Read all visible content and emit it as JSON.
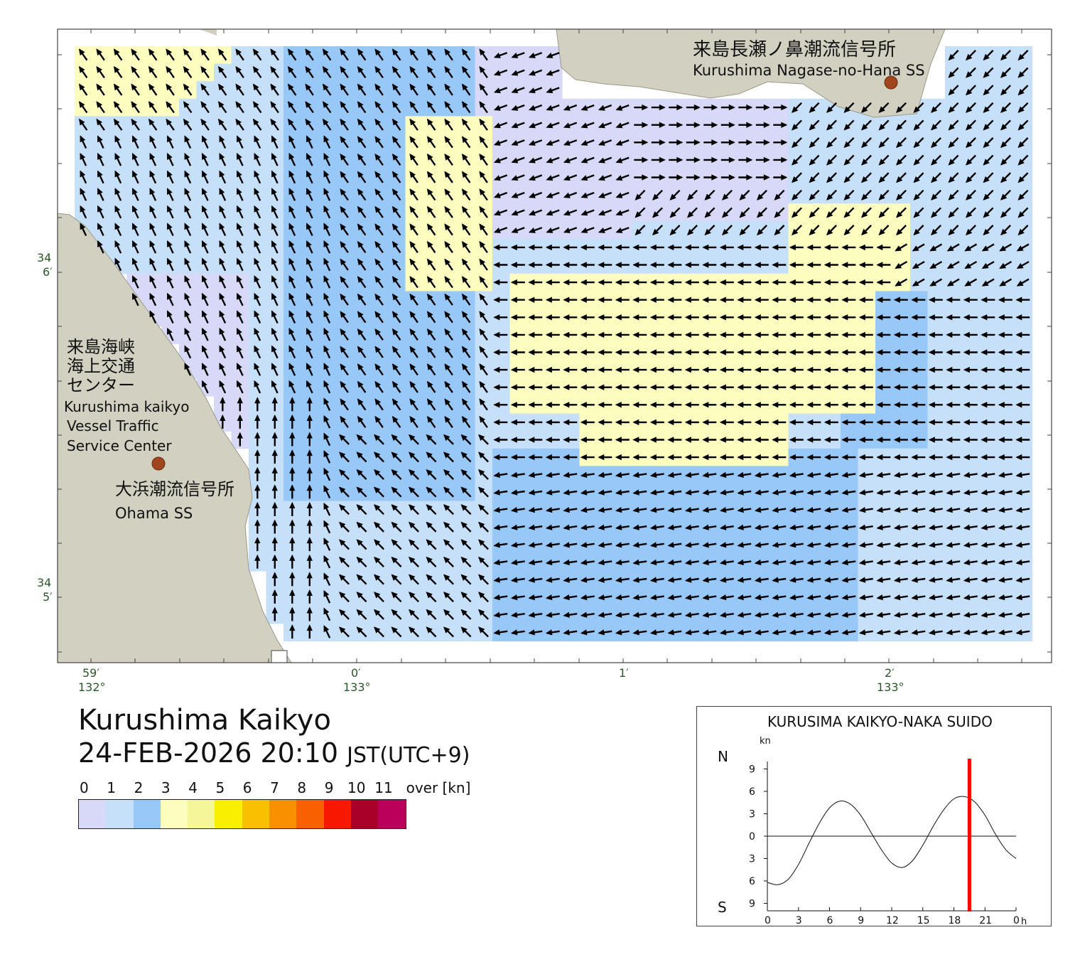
{
  "map": {
    "stations": [
      {
        "name_ja": "来島長瀬ノ鼻潮流信号所",
        "name_en": "Kurushima Nagase-no-Hana SS"
      },
      {
        "name_ja": "大浜潮流信号所",
        "name_en": "Ohama SS"
      }
    ],
    "vts_center": {
      "name_ja": [
        "来島海峡",
        "海上交通",
        "センター"
      ],
      "name_en": [
        "Kurushima kaikyo",
        "Vessel Traffic",
        "Service Center"
      ]
    },
    "lat_labels": [
      {
        "deg": "34",
        "min": "6′"
      },
      {
        "deg": "34",
        "min": "5′"
      }
    ],
    "lon_labels": [
      {
        "top": "59′",
        "bottom": "132°"
      },
      {
        "top": "0′",
        "bottom": "133°"
      },
      {
        "top": "1′",
        "bottom": ""
      },
      {
        "top": "2′",
        "bottom": "133°"
      }
    ],
    "colors": {
      "land": "#d2d0c0",
      "speed_0_1": "#d8d8f8",
      "speed_1_2": "#c6e0fa",
      "speed_2_3": "#98c8f8",
      "speed_3_4": "#fdfdc0"
    }
  },
  "title": {
    "place": "Kurushima Kaikyo",
    "datetime": "24-FEB-2026 20:10",
    "timezone": "JST(UTC+9)"
  },
  "legend": {
    "labels": [
      "0",
      "1",
      "2",
      "3",
      "4",
      "5",
      "6",
      "7",
      "8",
      "9",
      "10",
      "11",
      "over [kn]"
    ],
    "colors": [
      "#d8d8f8",
      "#c6e0fa",
      "#98c8f8",
      "#fdfdc0",
      "#f5f59a",
      "#f8f000",
      "#f8c000",
      "#f89000",
      "#f86000",
      "#f81800",
      "#a80028",
      "#b8005a"
    ]
  },
  "tide_graph": {
    "title": "KURUSIMA KAIKYO-NAKA SUIDO",
    "unit": "kn",
    "north_label": "N",
    "south_label": "S",
    "y_tick_labels": [
      "9",
      "6",
      "3",
      "0",
      "3",
      "6",
      "9"
    ],
    "x_tick_labels": [
      "0",
      "3",
      "6",
      "9",
      "12",
      "15",
      "18",
      "21",
      "0"
    ],
    "x_unit": "h",
    "now_hour": 19.5,
    "now_color": "#ff0000"
  },
  "chart_data": {
    "type": "line",
    "title": "KURUSIMA KAIKYO-NAKA SUIDO",
    "ylabel": "kn",
    "x_unit": "h",
    "x": [
      0,
      1,
      2,
      3,
      4,
      5,
      6,
      7,
      8,
      9,
      10,
      11,
      12,
      13,
      14,
      15,
      16,
      17,
      18,
      19,
      20,
      21,
      22,
      23,
      24
    ],
    "series": [
      {
        "values": [
          -6.2,
          -6.5,
          -5.8,
          -3.8,
          -1.0,
          1.7,
          3.8,
          4.7,
          4.3,
          2.8,
          0.5,
          -1.8,
          -3.6,
          -4.2,
          -3.3,
          -1.2,
          1.3,
          3.5,
          5.0,
          5.3,
          4.6,
          2.8,
          0.3,
          -1.8,
          -3.0
        ]
      }
    ],
    "xlim": [
      0,
      24
    ],
    "ylim": [
      -10,
      10
    ]
  }
}
